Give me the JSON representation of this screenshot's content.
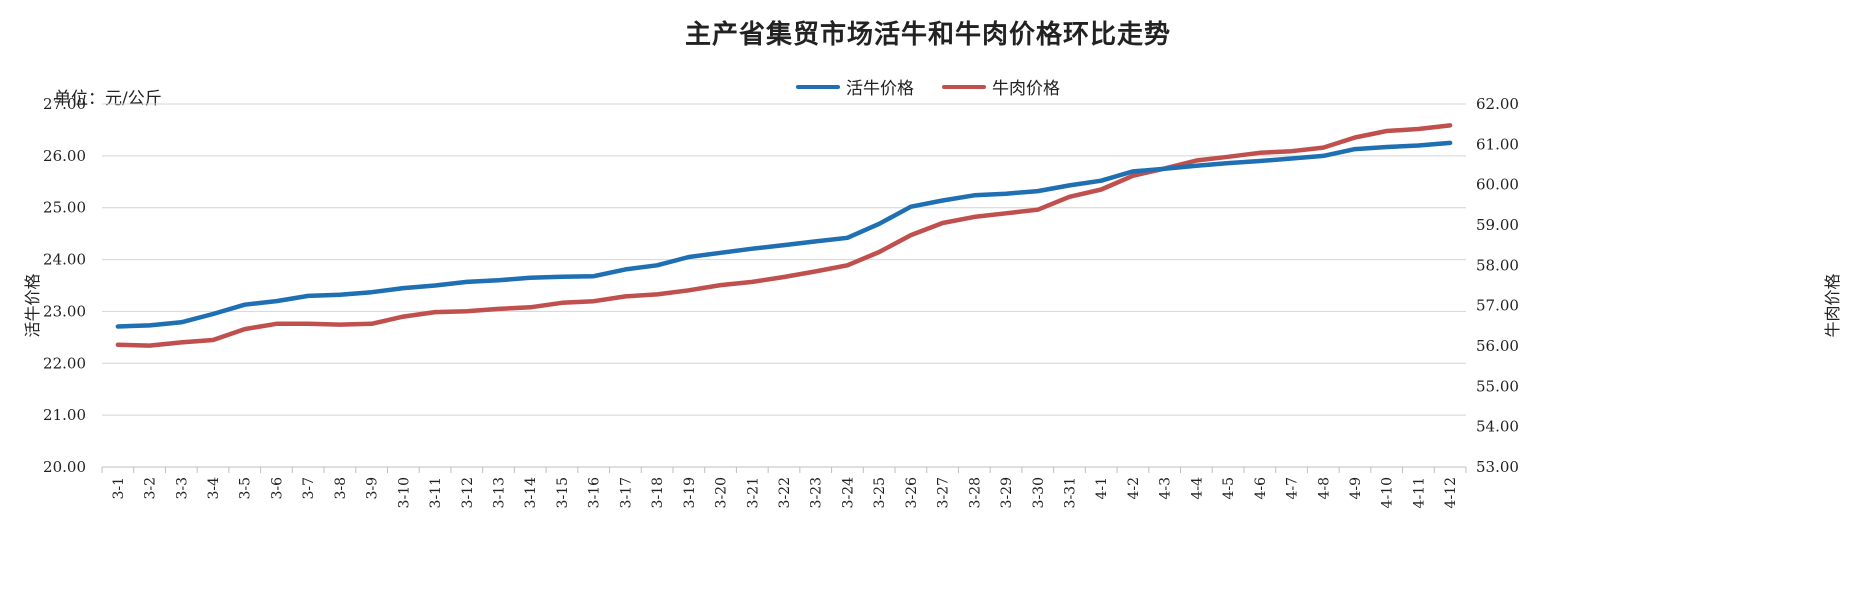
{
  "title": "主产省集贸市场活牛和牛肉价格环比走势",
  "unit_label": "单位：元/公斤",
  "colors": {
    "live_cattle": "#1f6fb3",
    "beef": "#c0504d",
    "grid": "#d4d4d4"
  },
  "chart_data": {
    "type": "line",
    "title": "主产省集贸市场活牛和牛肉价格环比走势",
    "ylabel_left": "活牛价格",
    "ylabel_right": "牛肉价格",
    "ylim_left": [
      20,
      27
    ],
    "ylim_right": [
      53,
      62
    ],
    "yticks_left": [
      "20.00",
      "21.00",
      "22.00",
      "23.00",
      "24.00",
      "25.00",
      "26.00",
      "27.00"
    ],
    "yticks_right": [
      "53.00",
      "54.00",
      "55.00",
      "56.00",
      "57.00",
      "58.00",
      "59.00",
      "60.00",
      "61.00",
      "62.00"
    ],
    "grid": true,
    "legend_position": "top-center",
    "categories": [
      "3-1",
      "3-2",
      "3-3",
      "3-4",
      "3-5",
      "3-6",
      "3-7",
      "3-8",
      "3-9",
      "3-10",
      "3-11",
      "3-12",
      "3-13",
      "3-14",
      "3-15",
      "3-16",
      "3-17",
      "3-18",
      "3-19",
      "3-20",
      "3-21",
      "3-22",
      "3-23",
      "3-24",
      "3-25",
      "3-26",
      "3-27",
      "3-28",
      "3-29",
      "3-30",
      "3-31",
      "4-1",
      "4-2",
      "4-3",
      "4-4",
      "4-5",
      "4-6",
      "4-7",
      "4-8",
      "4-9",
      "4-10",
      "4-11",
      "4-12"
    ],
    "series": [
      {
        "name": "活牛价格",
        "axis": "left",
        "values": [
          22.71,
          22.73,
          22.79,
          22.95,
          23.13,
          23.2,
          23.3,
          23.32,
          23.37,
          23.45,
          23.5,
          23.57,
          23.6,
          23.65,
          23.67,
          23.68,
          23.81,
          23.89,
          24.05,
          24.13,
          24.21,
          24.28,
          24.35,
          24.42,
          24.69,
          25.02,
          25.14,
          25.24,
          25.27,
          25.32,
          25.43,
          25.52,
          25.7,
          25.75,
          25.81,
          25.86,
          25.9,
          25.95,
          26.0,
          26.13,
          26.17,
          26.2,
          26.25
        ]
      },
      {
        "name": "牛肉价格",
        "axis": "right",
        "values": [
          56.03,
          56.01,
          56.09,
          56.15,
          56.42,
          56.55,
          56.55,
          56.53,
          56.55,
          56.73,
          56.84,
          56.86,
          56.92,
          56.96,
          57.07,
          57.11,
          57.23,
          57.28,
          57.38,
          57.51,
          57.59,
          57.71,
          57.85,
          58.0,
          58.33,
          58.75,
          59.05,
          59.2,
          59.29,
          59.38,
          59.7,
          59.88,
          60.22,
          60.4,
          60.6,
          60.69,
          60.79,
          60.83,
          60.92,
          61.17,
          61.33,
          61.38,
          61.47
        ]
      }
    ]
  }
}
